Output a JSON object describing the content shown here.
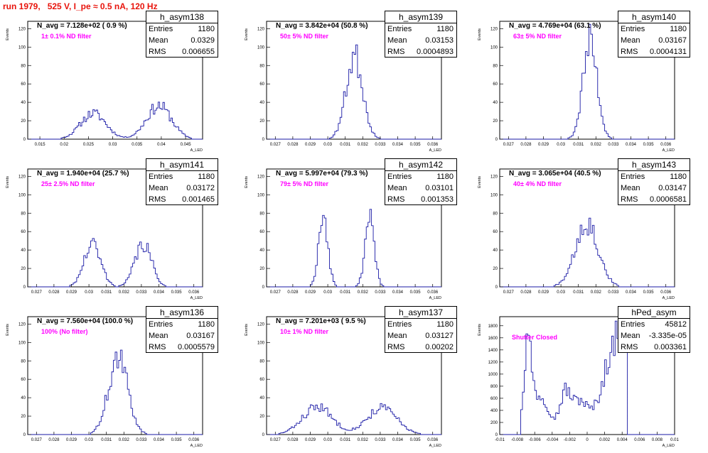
{
  "title": "run 1979,   525 V, I_pe ≈ 0.5 nA, 120 Hz",
  "colors": {
    "hist": "#1a1aa6",
    "annotation": "#ff00ff",
    "title": "#e8140c"
  },
  "chart_data": [
    {
      "type": "bar",
      "name": "h_asym138",
      "stats": {
        "entries": "1180",
        "mean": "0.0329",
        "rms": "0.006655"
      },
      "navg": "N_avg = 7.128e+02 ( 0.9 %)",
      "annotation": "1± 0.1% ND filter",
      "xlabel": "A_LED",
      "ylabel": "Events",
      "xlim": [
        0.0125,
        0.0485
      ],
      "ylim": [
        0,
        128
      ],
      "xticks": [
        "0.015",
        "0.02",
        "0.025",
        "0.03",
        "0.035",
        "0.04",
        "0.045"
      ],
      "xtick_values": [
        0.015,
        0.02,
        0.025,
        0.03,
        0.035,
        0.04,
        0.045
      ],
      "yticks": [
        "0",
        "20",
        "40",
        "60",
        "80",
        "100",
        "120"
      ],
      "ytick_values": [
        0,
        20,
        40,
        60,
        80,
        100,
        120
      ],
      "peaks": [
        {
          "mu": 0.026,
          "sigma": 0.0026,
          "amp": 28
        },
        {
          "mu": 0.0395,
          "sigma": 0.0026,
          "amp": 36
        }
      ],
      "bins": 110,
      "seed": 11
    },
    {
      "type": "bar",
      "name": "h_asym139",
      "stats": {
        "entries": "1180",
        "mean": "0.03153",
        "rms": "0.0004893"
      },
      "navg": "N_avg = 3.842e+04 (50.8 %)",
      "annotation": "50± 5% ND filter",
      "xlabel": "A_LED",
      "ylabel": "Events",
      "xlim": [
        0.0265,
        0.0365
      ],
      "ylim": [
        0,
        128
      ],
      "xticks": [
        "0.027",
        "0.028",
        "0.029",
        "0.03",
        "0.031",
        "0.032",
        "0.033",
        "0.034",
        "0.035",
        "0.036"
      ],
      "xtick_values": [
        0.027,
        0.028,
        0.029,
        0.03,
        0.031,
        0.032,
        0.033,
        0.034,
        0.035,
        0.036
      ],
      "yticks": [
        "0",
        "20",
        "40",
        "60",
        "80",
        "100",
        "120"
      ],
      "ytick_values": [
        0,
        20,
        40,
        60,
        80,
        100,
        120
      ],
      "peaks": [
        {
          "mu": 0.03153,
          "sigma": 0.00048,
          "amp": 90
        }
      ],
      "bins": 100,
      "seed": 23
    },
    {
      "type": "bar",
      "name": "h_asym140",
      "stats": {
        "entries": "1180",
        "mean": "0.03167",
        "rms": "0.0004131"
      },
      "navg": "N_avg = 4.769e+04 (63.1 %)",
      "annotation": "63± 5% ND filter",
      "xlabel": "A_LED",
      "ylabel": "Events",
      "xlim": [
        0.0265,
        0.0365
      ],
      "ylim": [
        0,
        128
      ],
      "xticks": [
        "0.027",
        "0.028",
        "0.029",
        "0.03",
        "0.031",
        "0.032",
        "0.033",
        "0.034",
        "0.035",
        "0.036"
      ],
      "xtick_values": [
        0.027,
        0.028,
        0.029,
        0.03,
        0.031,
        0.032,
        0.033,
        0.034,
        0.035,
        0.036
      ],
      "yticks": [
        "0",
        "20",
        "40",
        "60",
        "80",
        "100",
        "120"
      ],
      "ytick_values": [
        0,
        20,
        40,
        60,
        80,
        100,
        120
      ],
      "peaks": [
        {
          "mu": 0.03167,
          "sigma": 0.00041,
          "amp": 105
        }
      ],
      "bins": 100,
      "seed": 37
    },
    {
      "type": "bar",
      "name": "h_asym141",
      "stats": {
        "entries": "1180",
        "mean": "0.03172",
        "rms": "0.001465"
      },
      "navg": "N_avg = 1.940e+04 (25.7 %)",
      "annotation": "25± 2.5% ND filter",
      "xlabel": "A_LED",
      "ylabel": "Events",
      "xlim": [
        0.0265,
        0.0365
      ],
      "ylim": [
        0,
        128
      ],
      "xticks": [
        "0.027",
        "0.028",
        "0.029",
        "0.03",
        "0.031",
        "0.032",
        "0.033",
        "0.034",
        "0.035",
        "0.036"
      ],
      "xtick_values": [
        0.027,
        0.028,
        0.029,
        0.03,
        0.031,
        0.032,
        0.033,
        0.034,
        0.035,
        0.036
      ],
      "yticks": [
        "0",
        "20",
        "40",
        "60",
        "80",
        "100",
        "120"
      ],
      "ytick_values": [
        0,
        20,
        40,
        60,
        80,
        100,
        120
      ],
      "peaks": [
        {
          "mu": 0.0302,
          "sigma": 0.00048,
          "amp": 46
        },
        {
          "mu": 0.0331,
          "sigma": 0.00048,
          "amp": 46
        }
      ],
      "bins": 100,
      "seed": 41
    },
    {
      "type": "bar",
      "name": "h_asym142",
      "stats": {
        "entries": "1180",
        "mean": "0.03101",
        "rms": "0.001353"
      },
      "navg": "N_avg = 5.997e+04 (79.3 %)",
      "annotation": "79± 5% ND filter",
      "xlabel": "A_LED",
      "ylabel": "Events",
      "xlim": [
        0.0265,
        0.0365
      ],
      "ylim": [
        0,
        128
      ],
      "xticks": [
        "0.027",
        "0.028",
        "0.029",
        "0.03",
        "0.031",
        "0.032",
        "0.033",
        "0.034",
        "0.035",
        "0.036"
      ],
      "xtick_values": [
        0.027,
        0.028,
        0.029,
        0.03,
        0.031,
        0.032,
        0.033,
        0.034,
        0.035,
        0.036
      ],
      "yticks": [
        "0",
        "20",
        "40",
        "60",
        "80",
        "100",
        "120"
      ],
      "ytick_values": [
        0,
        20,
        40,
        60,
        80,
        100,
        120
      ],
      "peaks": [
        {
          "mu": 0.02975,
          "sigma": 0.00026,
          "amp": 80
        },
        {
          "mu": 0.0324,
          "sigma": 0.00026,
          "amp": 80
        }
      ],
      "bins": 100,
      "seed": 53
    },
    {
      "type": "bar",
      "name": "h_asym143",
      "stats": {
        "entries": "1180",
        "mean": "0.03147",
        "rms": "0.0006581"
      },
      "navg": "N_avg = 3.065e+04 (40.5 %)",
      "annotation": "40± 4% ND filter",
      "xlabel": "A_LED",
      "ylabel": "Events",
      "xlim": [
        0.0265,
        0.0365
      ],
      "ylim": [
        0,
        128
      ],
      "xticks": [
        "0.027",
        "0.028",
        "0.029",
        "0.03",
        "0.031",
        "0.032",
        "0.033",
        "0.034",
        "0.035",
        "0.036"
      ],
      "xtick_values": [
        0.027,
        0.028,
        0.029,
        0.03,
        0.031,
        0.032,
        0.033,
        0.034,
        0.035,
        0.036
      ],
      "yticks": [
        "0",
        "20",
        "40",
        "60",
        "80",
        "100",
        "120"
      ],
      "ytick_values": [
        0,
        20,
        40,
        60,
        80,
        100,
        120
      ],
      "peaks": [
        {
          "mu": 0.03147,
          "sigma": 0.00066,
          "amp": 70
        }
      ],
      "bins": 100,
      "seed": 67
    },
    {
      "type": "bar",
      "name": "h_asym136",
      "stats": {
        "entries": "1180",
        "mean": "0.03167",
        "rms": "0.0005579"
      },
      "navg": "N_avg = 7.560e+04 (100.0 %)",
      "annotation": "100% (No filter)",
      "xlabel": "A_LED",
      "ylabel": "Events",
      "xlim": [
        0.0265,
        0.0365
      ],
      "ylim": [
        0,
        128
      ],
      "xticks": [
        "0.027",
        "0.028",
        "0.029",
        "0.03",
        "0.031",
        "0.032",
        "0.033",
        "0.034",
        "0.035",
        "0.036"
      ],
      "xtick_values": [
        0.027,
        0.028,
        0.029,
        0.03,
        0.031,
        0.032,
        0.033,
        0.034,
        0.035,
        0.036
      ],
      "yticks": [
        "0",
        "20",
        "40",
        "60",
        "80",
        "100",
        "120"
      ],
      "ytick_values": [
        0,
        20,
        40,
        60,
        80,
        100,
        120
      ],
      "peaks": [
        {
          "mu": 0.03167,
          "sigma": 0.00056,
          "amp": 82
        }
      ],
      "bins": 100,
      "seed": 71
    },
    {
      "type": "bar",
      "name": "h_asym137",
      "stats": {
        "entries": "1180",
        "mean": "0.03127",
        "rms": "0.00202"
      },
      "navg": "N_avg = 7.201e+03 ( 9.5 %)",
      "annotation": "10± 1% ND filter",
      "xlabel": "A_LED",
      "ylabel": "Events",
      "xlim": [
        0.0265,
        0.0365
      ],
      "ylim": [
        0,
        128
      ],
      "xticks": [
        "0.027",
        "0.028",
        "0.029",
        "0.03",
        "0.031",
        "0.032",
        "0.033",
        "0.034",
        "0.035",
        "0.036"
      ],
      "xtick_values": [
        0.027,
        0.028,
        0.029,
        0.03,
        0.031,
        0.032,
        0.033,
        0.034,
        0.035,
        0.036
      ],
      "yticks": [
        "0",
        "20",
        "40",
        "60",
        "80",
        "100",
        "120"
      ],
      "ytick_values": [
        0,
        20,
        40,
        60,
        80,
        100,
        120
      ],
      "peaks": [
        {
          "mu": 0.0294,
          "sigma": 0.00085,
          "amp": 30
        },
        {
          "mu": 0.0331,
          "sigma": 0.00085,
          "amp": 29
        }
      ],
      "bins": 100,
      "seed": 83
    },
    {
      "type": "bar",
      "name": "hPed_asym",
      "stats": {
        "entries": "45812",
        "mean": "-3.335e-05",
        "rms": "0.003361"
      },
      "navg": "",
      "annotation": "Shutter Closed",
      "xlabel": "A_LED",
      "ylabel": "Events",
      "xlim": [
        -0.01,
        0.01
      ],
      "ylim": [
        0,
        1950
      ],
      "xticks": [
        "-0.01",
        "-0.008",
        "-0.006",
        "-0.004",
        "-0.002",
        "0",
        "0.002",
        "0.004",
        "0.006",
        "0.008",
        "0.01"
      ],
      "xtick_values": [
        -0.01,
        -0.008,
        -0.006,
        -0.004,
        -0.002,
        0,
        0.002,
        0.004,
        0.006,
        0.008,
        0.01
      ],
      "yticks": [
        "0",
        "200",
        "400",
        "600",
        "800",
        "1000",
        "1200",
        "1400",
        "1600",
        "1800"
      ],
      "ytick_values": [
        0,
        200,
        400,
        600,
        800,
        1000,
        1200,
        1400,
        1600,
        1800
      ],
      "ped": true,
      "bins": 100,
      "seed": 97
    }
  ]
}
